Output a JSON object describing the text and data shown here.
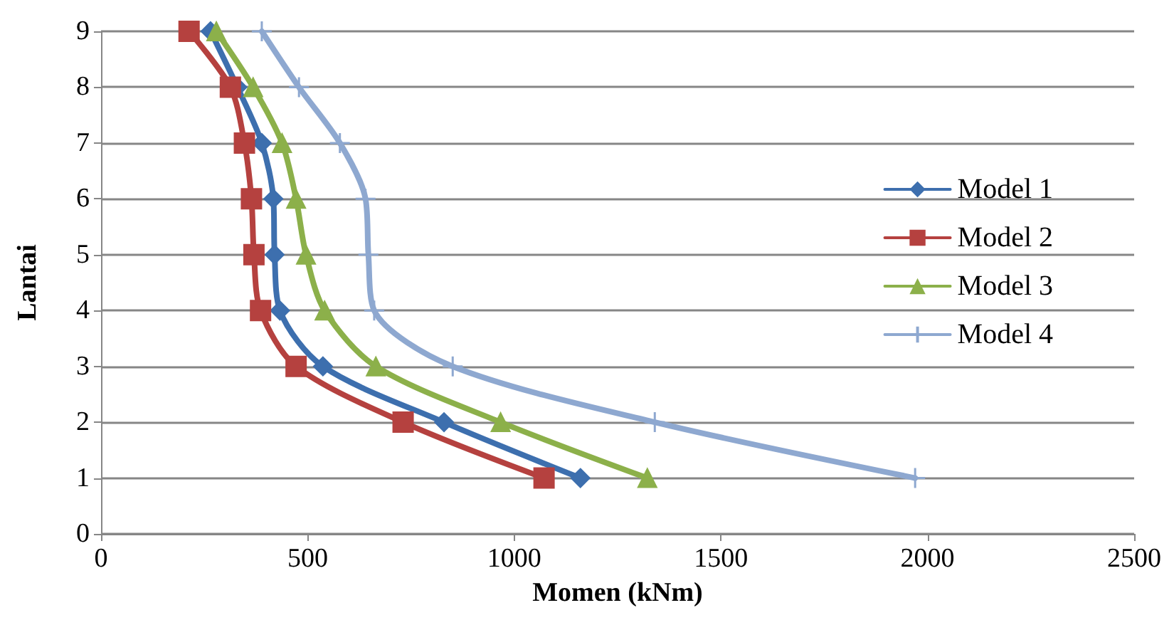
{
  "chart_data": {
    "type": "line",
    "xlabel": "Momen (kNm)",
    "ylabel": "Lantai",
    "xlim": [
      0,
      2500
    ],
    "xticks": [
      0,
      500,
      1000,
      1500,
      2000,
      2500
    ],
    "ylim": [
      0,
      9
    ],
    "yticks": [
      0,
      1,
      2,
      3,
      4,
      5,
      6,
      7,
      8,
      9
    ],
    "grid": "y",
    "legend": "right",
    "line_style": "solid",
    "series": [
      {
        "name": "Model 1",
        "color": "#3d6fae",
        "marker": "diamond",
        "x": [
          265,
          330,
          389,
          417,
          420,
          433,
          537,
          830,
          1160
        ],
        "values": [
          9,
          8,
          7,
          6,
          5,
          4,
          3,
          2,
          1
        ]
      },
      {
        "name": "Model 2",
        "color": "#b5413f",
        "marker": "square",
        "x": [
          213,
          313,
          347,
          364,
          370,
          386,
          472,
          731,
          1072
        ],
        "values": [
          9,
          8,
          7,
          6,
          5,
          4,
          3,
          2,
          1
        ]
      },
      {
        "name": "Model 3",
        "color": "#8cb04a",
        "marker": "triangle",
        "x": [
          279,
          368,
          438,
          472,
          496,
          541,
          665,
          967,
          1322
        ],
        "values": [
          9,
          8,
          7,
          6,
          5,
          4,
          3,
          2,
          1
        ]
      },
      {
        "name": "Model 4",
        "color": "#8ea8d0",
        "marker": "cross",
        "x": [
          389,
          479,
          578,
          640,
          647,
          661,
          851,
          1340,
          1970
        ],
        "values": [
          9,
          8,
          7,
          6,
          5,
          4,
          3,
          2,
          1
        ]
      }
    ]
  }
}
